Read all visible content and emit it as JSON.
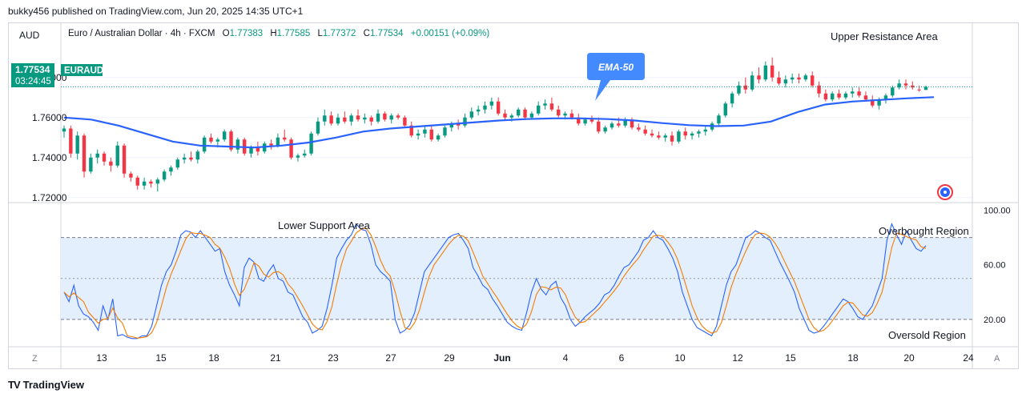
{
  "header": {
    "published_text": "bukky456 published on TradingView.com, Jun 20, 2025 14:35 UTC+1"
  },
  "toolbar": {
    "currency_button": "AUD",
    "z_button": "Z",
    "a_button": "A"
  },
  "footer": {
    "brand": "TradingView",
    "brand_mark": "TV"
  },
  "legend": {
    "name": "Euro / Australian Dollar · 4h · FXCM",
    "o_label": "O",
    "o_value": "1.77383",
    "h_label": "H",
    "h_value": "1.77585",
    "l_label": "L",
    "l_value": "1.77372",
    "c_label": "C",
    "c_value": "1.77534",
    "change": "+0.00151 (+0.09%)"
  },
  "colors": {
    "up": "#089981",
    "down": "#f23645",
    "ema": "#2962ff",
    "stoch_k": "#2962ff",
    "stoch_d": "#f57c00",
    "band_fill": "#e3effd",
    "price_line": "#089981",
    "callout": "#448aff",
    "grid": "#f0f3fa",
    "text": "#131722"
  },
  "chart_data": [
    {
      "type": "candlestick",
      "symbol": "EURAUD",
      "timeframe": "4h",
      "last_price": "1.77534",
      "countdown": "03:24:45",
      "y_axis": {
        "ticks": [
          "1.78000",
          "1.76000",
          "1.74000",
          "1.72000"
        ],
        "range": [
          1.7175,
          1.8075
        ]
      },
      "x_axis": {
        "ticks": [
          "13",
          "15",
          "18",
          "21",
          "23",
          "27",
          "29",
          "Jun",
          "4",
          "6",
          "10",
          "12",
          "15",
          "18",
          "20",
          "24"
        ]
      },
      "indicator": {
        "name": "EMA-50",
        "label": "EMA-50"
      },
      "annotations": {
        "upper": "Upper Resistance Area"
      },
      "candles": [
        [
          1.753,
          1.756,
          1.75,
          1.7545
        ],
        [
          1.7545,
          1.756,
          1.74,
          1.742
        ],
        [
          1.742,
          1.753,
          1.739,
          1.751
        ],
        [
          1.751,
          1.752,
          1.73,
          1.733
        ],
        [
          1.733,
          1.742,
          1.732,
          1.74
        ],
        [
          1.74,
          1.744,
          1.737,
          1.742
        ],
        [
          1.742,
          1.743,
          1.736,
          1.738
        ],
        [
          1.738,
          1.74,
          1.733,
          1.736
        ],
        [
          1.736,
          1.748,
          1.735,
          1.746
        ],
        [
          1.746,
          1.747,
          1.73,
          1.732
        ],
        [
          1.732,
          1.733,
          1.728,
          1.73
        ],
        [
          1.73,
          1.731,
          1.724,
          1.726
        ],
        [
          1.726,
          1.73,
          1.724,
          1.728
        ],
        [
          1.728,
          1.729,
          1.725,
          1.727
        ],
        [
          1.727,
          1.73,
          1.723,
          1.729
        ],
        [
          1.729,
          1.734,
          1.728,
          1.733
        ],
        [
          1.733,
          1.736,
          1.731,
          1.735
        ],
        [
          1.735,
          1.74,
          1.734,
          1.739
        ],
        [
          1.739,
          1.742,
          1.737,
          1.74
        ],
        [
          1.74,
          1.743,
          1.738,
          1.739
        ],
        [
          1.739,
          1.744,
          1.737,
          1.743
        ],
        [
          1.743,
          1.751,
          1.742,
          1.75
        ],
        [
          1.75,
          1.752,
          1.747,
          1.748
        ],
        [
          1.748,
          1.75,
          1.745,
          1.749
        ],
        [
          1.749,
          1.754,
          1.748,
          1.753
        ],
        [
          1.753,
          1.754,
          1.743,
          1.744
        ],
        [
          1.744,
          1.75,
          1.742,
          1.749
        ],
        [
          1.749,
          1.75,
          1.741,
          1.742
        ],
        [
          1.742,
          1.746,
          1.74,
          1.745
        ],
        [
          1.745,
          1.748,
          1.741,
          1.743
        ],
        [
          1.743,
          1.748,
          1.742,
          1.747
        ],
        [
          1.747,
          1.749,
          1.744,
          1.746
        ],
        [
          1.746,
          1.752,
          1.745,
          1.75
        ],
        [
          1.75,
          1.754,
          1.748,
          1.749
        ],
        [
          1.749,
          1.75,
          1.739,
          1.74
        ],
        [
          1.74,
          1.742,
          1.738,
          1.741
        ],
        [
          1.741,
          1.744,
          1.74,
          1.742
        ],
        [
          1.742,
          1.753,
          1.741,
          1.752
        ],
        [
          1.752,
          1.76,
          1.751,
          1.758
        ],
        [
          1.758,
          1.764,
          1.756,
          1.761
        ],
        [
          1.761,
          1.763,
          1.756,
          1.757
        ],
        [
          1.757,
          1.762,
          1.756,
          1.76
        ],
        [
          1.76,
          1.763,
          1.757,
          1.758
        ],
        [
          1.758,
          1.762,
          1.756,
          1.761
        ],
        [
          1.761,
          1.764,
          1.758,
          1.759
        ],
        [
          1.759,
          1.762,
          1.757,
          1.76
        ],
        [
          1.76,
          1.761,
          1.756,
          1.758
        ],
        [
          1.758,
          1.764,
          1.757,
          1.762
        ],
        [
          1.762,
          1.763,
          1.758,
          1.759
        ],
        [
          1.759,
          1.762,
          1.757,
          1.761
        ],
        [
          1.761,
          1.762,
          1.759,
          1.76
        ],
        [
          1.76,
          1.761,
          1.755,
          1.756
        ],
        [
          1.756,
          1.758,
          1.75,
          1.751
        ],
        [
          1.751,
          1.754,
          1.749,
          1.752
        ],
        [
          1.752,
          1.756,
          1.75,
          1.754
        ],
        [
          1.754,
          1.756,
          1.748,
          1.749
        ],
        [
          1.749,
          1.752,
          1.748,
          1.751
        ],
        [
          1.751,
          1.756,
          1.75,
          1.755
        ],
        [
          1.755,
          1.758,
          1.753,
          1.757
        ],
        [
          1.757,
          1.759,
          1.754,
          1.756
        ],
        [
          1.756,
          1.762,
          1.755,
          1.76
        ],
        [
          1.76,
          1.765,
          1.759,
          1.763
        ],
        [
          1.763,
          1.766,
          1.761,
          1.764
        ],
        [
          1.764,
          1.768,
          1.762,
          1.766
        ],
        [
          1.766,
          1.77,
          1.764,
          1.768
        ],
        [
          1.768,
          1.77,
          1.761,
          1.762
        ],
        [
          1.762,
          1.764,
          1.759,
          1.76
        ],
        [
          1.76,
          1.762,
          1.758,
          1.761
        ],
        [
          1.761,
          1.765,
          1.76,
          1.764
        ],
        [
          1.764,
          1.765,
          1.759,
          1.76
        ],
        [
          1.76,
          1.763,
          1.759,
          1.762
        ],
        [
          1.762,
          1.768,
          1.761,
          1.766
        ],
        [
          1.766,
          1.769,
          1.764,
          1.767
        ],
        [
          1.767,
          1.77,
          1.763,
          1.764
        ],
        [
          1.764,
          1.766,
          1.76,
          1.761
        ],
        [
          1.761,
          1.763,
          1.759,
          1.762
        ],
        [
          1.762,
          1.764,
          1.759,
          1.76
        ],
        [
          1.76,
          1.762,
          1.756,
          1.757
        ],
        [
          1.757,
          1.76,
          1.756,
          1.759
        ],
        [
          1.759,
          1.761,
          1.757,
          1.758
        ],
        [
          1.758,
          1.76,
          1.752,
          1.753
        ],
        [
          1.753,
          1.756,
          1.752,
          1.755
        ],
        [
          1.755,
          1.758,
          1.754,
          1.757
        ],
        [
          1.757,
          1.76,
          1.755,
          1.756
        ],
        [
          1.756,
          1.76,
          1.755,
          1.759
        ],
        [
          1.759,
          1.76,
          1.754,
          1.755
        ],
        [
          1.755,
          1.757,
          1.753,
          1.754
        ],
        [
          1.754,
          1.756,
          1.751,
          1.752
        ],
        [
          1.752,
          1.754,
          1.75,
          1.751
        ],
        [
          1.751,
          1.753,
          1.749,
          1.75
        ],
        [
          1.75,
          1.752,
          1.748,
          1.751
        ],
        [
          1.751,
          1.753,
          1.746,
          1.748
        ],
        [
          1.748,
          1.754,
          1.747,
          1.753
        ],
        [
          1.753,
          1.755,
          1.749,
          1.751
        ],
        [
          1.751,
          1.753,
          1.749,
          1.752
        ],
        [
          1.752,
          1.754,
          1.75,
          1.753
        ],
        [
          1.753,
          1.756,
          1.751,
          1.754
        ],
        [
          1.754,
          1.758,
          1.753,
          1.757
        ],
        [
          1.757,
          1.762,
          1.756,
          1.761
        ],
        [
          1.761,
          1.768,
          1.76,
          1.767
        ],
        [
          1.767,
          1.773,
          1.765,
          1.772
        ],
        [
          1.772,
          1.778,
          1.771,
          1.776
        ],
        [
          1.776,
          1.78,
          1.772,
          1.774
        ],
        [
          1.774,
          1.783,
          1.773,
          1.781
        ],
        [
          1.781,
          1.785,
          1.777,
          1.779
        ],
        [
          1.779,
          1.788,
          1.778,
          1.786
        ],
        [
          1.786,
          1.79,
          1.778,
          1.78
        ],
        [
          1.78,
          1.783,
          1.776,
          1.777
        ],
        [
          1.777,
          1.781,
          1.775,
          1.779
        ],
        [
          1.779,
          1.782,
          1.777,
          1.78
        ],
        [
          1.78,
          1.782,
          1.777,
          1.779
        ],
        [
          1.779,
          1.782,
          1.778,
          1.781
        ],
        [
          1.781,
          1.783,
          1.775,
          1.776
        ],
        [
          1.776,
          1.778,
          1.77,
          1.772
        ],
        [
          1.772,
          1.774,
          1.768,
          1.769
        ],
        [
          1.769,
          1.773,
          1.768,
          1.772
        ],
        [
          1.772,
          1.774,
          1.769,
          1.77
        ],
        [
          1.77,
          1.773,
          1.769,
          1.772
        ],
        [
          1.772,
          1.775,
          1.77,
          1.773
        ],
        [
          1.773,
          1.775,
          1.77,
          1.771
        ],
        [
          1.771,
          1.773,
          1.768,
          1.769
        ],
        [
          1.769,
          1.771,
          1.765,
          1.766
        ],
        [
          1.766,
          1.77,
          1.764,
          1.769
        ],
        [
          1.769,
          1.772,
          1.767,
          1.771
        ],
        [
          1.771,
          1.776,
          1.77,
          1.775
        ],
        [
          1.775,
          1.779,
          1.774,
          1.777
        ],
        [
          1.777,
          1.779,
          1.774,
          1.776
        ],
        [
          1.776,
          1.778,
          1.774,
          1.775
        ],
        [
          1.774,
          1.776,
          1.773,
          1.7738
        ],
        [
          1.7738,
          1.7759,
          1.7737,
          1.7753
        ]
      ],
      "ema_50": [
        1.76,
        1.759,
        1.756,
        1.752,
        1.748,
        1.746,
        1.7455,
        1.745,
        1.746,
        1.7475,
        1.75,
        1.753,
        1.7545,
        1.7555,
        1.7565,
        1.7575,
        1.7585,
        1.7592,
        1.7596,
        1.7596,
        1.7592,
        1.7585,
        1.7572,
        1.7562,
        1.7557,
        1.756,
        1.758,
        1.7628,
        1.7665,
        1.768,
        1.7688,
        1.7696,
        1.7702
      ]
    },
    {
      "type": "line",
      "name": "Stochastic",
      "y_axis": {
        "ticks": [
          "100.00",
          "60.00",
          "20.00"
        ],
        "range": [
          0,
          105
        ]
      },
      "levels": {
        "overbought": 80,
        "oversold": 20,
        "mid": 50
      },
      "annotations": {
        "lower": "Lower Support Area",
        "overbought": "Overbought Region",
        "oversold": "Oversold Region"
      },
      "k_series": [
        40,
        33,
        45,
        30,
        24,
        22,
        18,
        12,
        30,
        20,
        35,
        8,
        9,
        7,
        6,
        6,
        8,
        8,
        15,
        30,
        45,
        55,
        60,
        70,
        82,
        85,
        84,
        80,
        85,
        80,
        75,
        70,
        72,
        55,
        45,
        38,
        30,
        58,
        65,
        62,
        50,
        48,
        55,
        60,
        50,
        48,
        40,
        38,
        30,
        22,
        18,
        10,
        12,
        15,
        28,
        45,
        65,
        72,
        78,
        82,
        90,
        86,
        85,
        75,
        60,
        55,
        52,
        48,
        20,
        10,
        12,
        16,
        25,
        40,
        55,
        60,
        65,
        70,
        75,
        80,
        82,
        83,
        78,
        72,
        58,
        52,
        45,
        42,
        35,
        30,
        24,
        18,
        15,
        13,
        12,
        25,
        40,
        50,
        42,
        38,
        45,
        48,
        36,
        30,
        20,
        15,
        18,
        22,
        25,
        28,
        32,
        38,
        40,
        45,
        52,
        58,
        60,
        65,
        70,
        78,
        80,
        85,
        80,
        78,
        72,
        65,
        55,
        40,
        30,
        20,
        14,
        12,
        10,
        8,
        15,
        30,
        45,
        55,
        60,
        70,
        80,
        82,
        85,
        83,
        80,
        78,
        70,
        62,
        55,
        48,
        40,
        28,
        20,
        12,
        10,
        11,
        15,
        20,
        25,
        30,
        35,
        33,
        28,
        22,
        20,
        25,
        30,
        40,
        50,
        78,
        90,
        82,
        75,
        85,
        78,
        72,
        70,
        74
      ]
    }
  ]
}
